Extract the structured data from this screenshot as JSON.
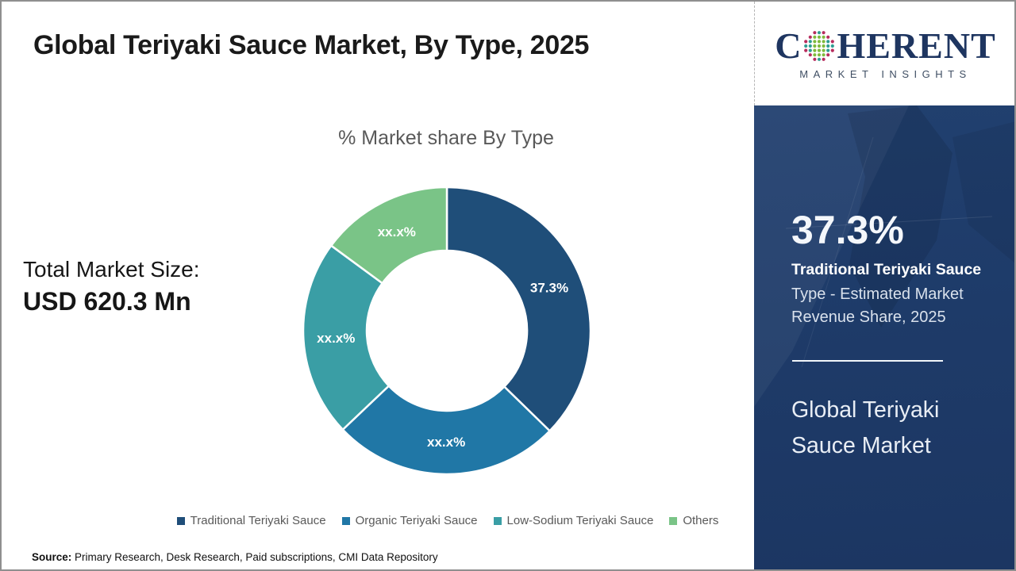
{
  "page": {
    "title": "Global Teriyaki Sauce Market, By Type, 2025",
    "source_label": "Source:",
    "source_text": " Primary Research, Desk Research, Paid subscriptions, CMI Data Repository"
  },
  "logo": {
    "brand_first_letter": "C",
    "brand_rest": "HERENT",
    "tagline": "MARKET INSIGHTS",
    "brand_color": "#1e3560",
    "globe_colors": {
      "ring_magenta": "#b72d5e",
      "ring_teal": "#2f9d92",
      "center_green": "#7fba3d"
    }
  },
  "left_panel": {
    "total_label": "Total Market Size:",
    "total_value": "USD 620.3 Mn"
  },
  "sidebar": {
    "highlight_value": "37.3%",
    "highlight_title": "Traditional Teriyaki Sauce",
    "highlight_subtitle": "Type - Estimated Market Revenue Share, 2025",
    "footer_title": "Global Teriyaki Sauce Market",
    "background_color": "#1e3b69"
  },
  "chart_data": {
    "type": "pie",
    "subtype": "donut",
    "title": "% Market share By Type",
    "categories": [
      "Traditional Teriyaki Sauce",
      "Organic Teriyaki Sauce",
      "Low-Sodium Teriyaki Sauce",
      "Others"
    ],
    "series": [
      {
        "name": "Traditional Teriyaki Sauce",
        "value": 37.3,
        "display_label": "37.3%",
        "color": "#1f4e79"
      },
      {
        "name": "Organic Teriyaki Sauce",
        "value": 25.6,
        "display_label": "xx.x%",
        "color": "#2077a6"
      },
      {
        "name": "Low-Sodium Teriyaki Sauce",
        "value": 22.2,
        "display_label": "xx.x%",
        "color": "#3a9ea5"
      },
      {
        "name": "Others",
        "value": 14.9,
        "display_label": "xx.x%",
        "color": "#7ac487"
      }
    ],
    "start_angle_deg": 0,
    "direction": "clockwise",
    "hole_ratio": 0.56,
    "legend_position": "bottom",
    "label_color": "#ffffff"
  }
}
